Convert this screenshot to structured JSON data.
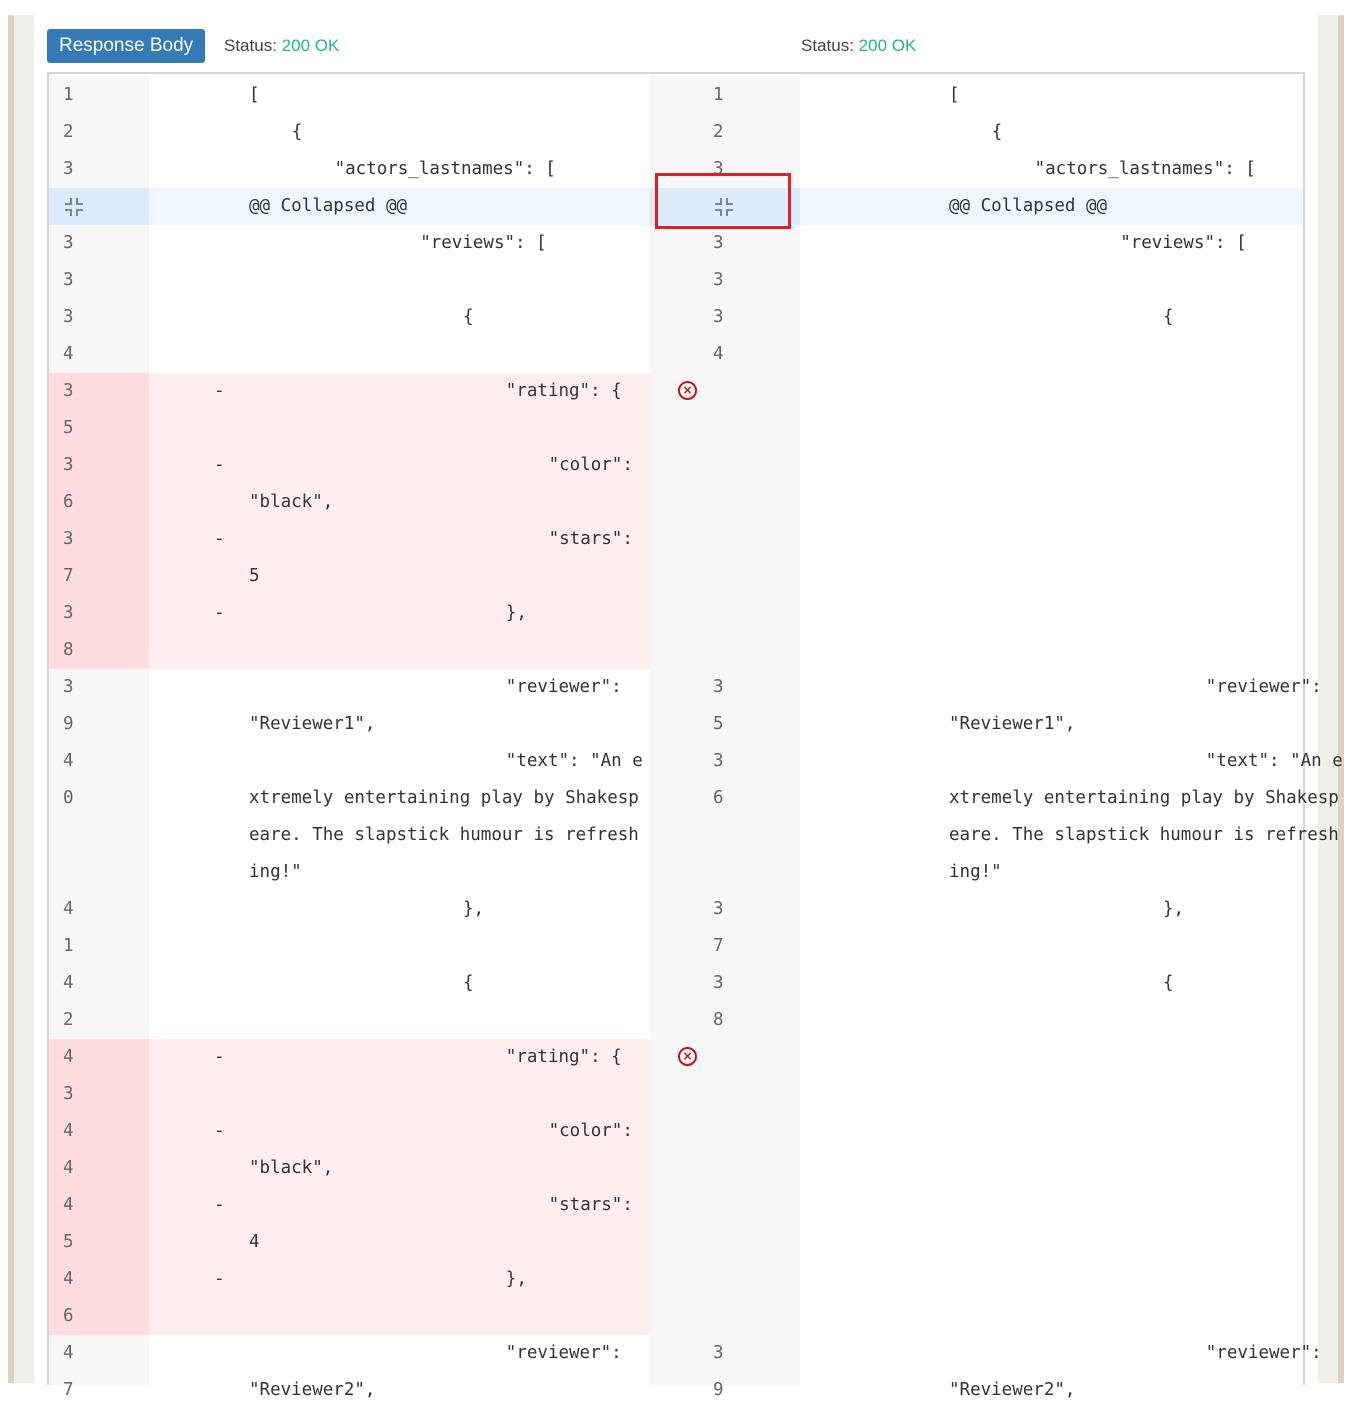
{
  "header": {
    "response_body_label": "Response Body",
    "status_label": "Status:",
    "left_status": "200 OK",
    "right_status": "200 OK",
    "button_color": "#337ab7",
    "ok_color": "#20b592"
  },
  "collapsed_label": "@@ Collapsed @@",
  "removed_marker": "-",
  "colors": {
    "removed_gutter": "#ffdce0",
    "removed_code": "#ffeef0",
    "collapsed_row": "#f0f6ff",
    "error_icon": "#c6121a",
    "highlight_box": "#e21f26"
  },
  "rows": [
    {
      "type": "normal",
      "l_num": "1",
      "l_code": "[",
      "l_indent": 0,
      "r_num": "1",
      "r_code": "[",
      "r_indent": 0
    },
    {
      "type": "normal",
      "l_num": "2",
      "l_code": "{",
      "l_indent": 4,
      "r_num": "2",
      "r_code": "{",
      "r_indent": 4
    },
    {
      "type": "normal",
      "l_num": "3",
      "l_code": "\"actors_lastnames\": [",
      "l_indent": 8,
      "r_num": "3",
      "r_code": "\"actors_lastnames\": [",
      "r_indent": 8
    },
    {
      "type": "collapsed",
      "l_code": "@@ Collapsed @@",
      "r_code": "@@ Collapsed @@"
    },
    {
      "type": "normal",
      "l_num": "3",
      "l_code": "\"reviews\": [",
      "l_indent": 16,
      "r_num": "3",
      "r_code": "\"reviews\": [",
      "r_indent": 16
    },
    {
      "type": "normal",
      "l_num": "3",
      "l_code": "",
      "l_indent": 0,
      "r_num": "3",
      "r_code": "",
      "r_indent": 0
    },
    {
      "type": "normal",
      "l_num": "3",
      "l_code": "{",
      "l_indent": 20,
      "r_num": "3",
      "r_code": "{",
      "r_indent": 20
    },
    {
      "type": "normal",
      "l_num": "4",
      "l_code": "",
      "l_indent": 0,
      "r_num": "4",
      "r_code": "",
      "r_indent": 0
    },
    {
      "type": "removed",
      "l_num": "3",
      "mark": true,
      "err": true,
      "l_code": "\"rating\": {",
      "l_indent": 24
    },
    {
      "type": "removed",
      "l_num": "5",
      "l_code": "",
      "l_indent": 0
    },
    {
      "type": "removed",
      "l_num": "3",
      "mark": true,
      "l_code": "\"color\":",
      "l_indent": 28
    },
    {
      "type": "removed",
      "l_num": "6",
      "l_code": "\"black\",",
      "l_indent": 0
    },
    {
      "type": "removed",
      "l_num": "3",
      "mark": true,
      "l_code": "\"stars\":",
      "l_indent": 28
    },
    {
      "type": "removed",
      "l_num": "7",
      "l_code": "5",
      "l_indent": 0
    },
    {
      "type": "removed",
      "l_num": "3",
      "mark": true,
      "l_code": "},",
      "l_indent": 24
    },
    {
      "type": "removed",
      "l_num": "8",
      "l_code": "",
      "l_indent": 0
    },
    {
      "type": "normal",
      "l_num": "3",
      "l_code": "\"reviewer\":",
      "l_indent": 24,
      "r_num": "3",
      "r_code": "\"reviewer\":",
      "r_indent": 24
    },
    {
      "type": "normal",
      "l_num": "9",
      "l_code": "\"Reviewer1\",",
      "l_indent": 0,
      "r_num": "5",
      "r_code": "\"Reviewer1\",",
      "r_indent": 0
    },
    {
      "type": "normal",
      "l_num": "4",
      "l_code": "\"text\": \"An e",
      "l_indent": 24,
      "r_num": "3",
      "r_code": "\"text\": \"An e",
      "r_indent": 24
    },
    {
      "type": "normal",
      "l_num": "0",
      "l_code": "xtremely entertaining play by Shakesp",
      "l_indent": 0,
      "r_num": "6",
      "r_code": "xtremely entertaining play by Shakesp",
      "r_indent": 0
    },
    {
      "type": "normal",
      "l_num": "",
      "l_code": "eare. The slapstick humour is refresh",
      "l_indent": 0,
      "r_num": "",
      "r_code": "eare. The slapstick humour is refresh",
      "r_indent": 0
    },
    {
      "type": "normal",
      "l_num": "",
      "l_code": "ing!\"",
      "l_indent": 0,
      "r_num": "",
      "r_code": "ing!\"",
      "r_indent": 0
    },
    {
      "type": "normal",
      "l_num": "4",
      "l_code": "},",
      "l_indent": 20,
      "r_num": "3",
      "r_code": "},",
      "r_indent": 20
    },
    {
      "type": "normal",
      "l_num": "1",
      "l_code": "",
      "l_indent": 0,
      "r_num": "7",
      "r_code": "",
      "r_indent": 0
    },
    {
      "type": "normal",
      "l_num": "4",
      "l_code": "{",
      "l_indent": 20,
      "r_num": "3",
      "r_code": "{",
      "r_indent": 20
    },
    {
      "type": "normal",
      "l_num": "2",
      "l_code": "",
      "l_indent": 0,
      "r_num": "8",
      "r_code": "",
      "r_indent": 0
    },
    {
      "type": "removed",
      "l_num": "4",
      "mark": true,
      "err": true,
      "l_code": "\"rating\": {",
      "l_indent": 24
    },
    {
      "type": "removed",
      "l_num": "3",
      "l_code": "",
      "l_indent": 0
    },
    {
      "type": "removed",
      "l_num": "4",
      "mark": true,
      "l_code": "\"color\":",
      "l_indent": 28
    },
    {
      "type": "removed",
      "l_num": "4",
      "l_code": "\"black\",",
      "l_indent": 0
    },
    {
      "type": "removed",
      "l_num": "4",
      "mark": true,
      "l_code": "\"stars\":",
      "l_indent": 28
    },
    {
      "type": "removed",
      "l_num": "5",
      "l_code": "4",
      "l_indent": 0
    },
    {
      "type": "removed",
      "l_num": "4",
      "mark": true,
      "l_code": "},",
      "l_indent": 24
    },
    {
      "type": "removed",
      "l_num": "6",
      "l_code": "",
      "l_indent": 0
    },
    {
      "type": "normal",
      "l_num": "4",
      "l_code": "\"reviewer\":",
      "l_indent": 24,
      "r_num": "3",
      "r_code": "\"reviewer\":",
      "r_indent": 24
    },
    {
      "type": "normal",
      "l_num": "7",
      "l_code": "\"Reviewer2\",",
      "l_indent": 0,
      "r_num": "9",
      "r_code": "\"Reviewer2\",",
      "r_indent": 0
    }
  ]
}
